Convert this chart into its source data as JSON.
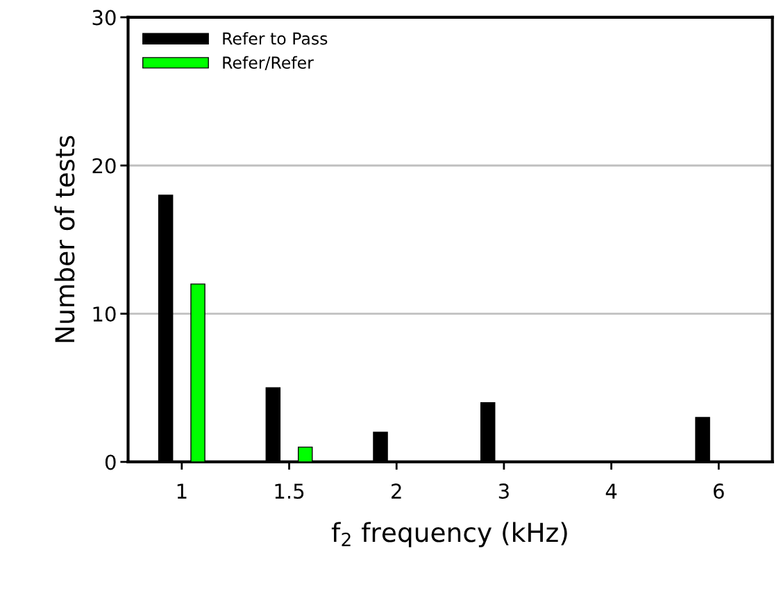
{
  "chart_data": {
    "type": "bar",
    "xlabel": "f$_{2}$ frequency (kHz)",
    "ylabel": "Number of tests",
    "categories": [
      "1",
      "1.5",
      "2",
      "3",
      "4",
      "6"
    ],
    "series": [
      {
        "name": "Refer to Pass",
        "color": "#000000",
        "values": [
          18,
          5,
          2,
          4,
          0,
          3
        ]
      },
      {
        "name": "Refer/Refer",
        "color": "#00ff00",
        "values": [
          12,
          1,
          0,
          0,
          0,
          0
        ]
      }
    ],
    "ylim": [
      0,
      30
    ],
    "yticks": [
      0,
      10,
      20,
      30
    ],
    "grid": "y",
    "legend": "top left"
  }
}
